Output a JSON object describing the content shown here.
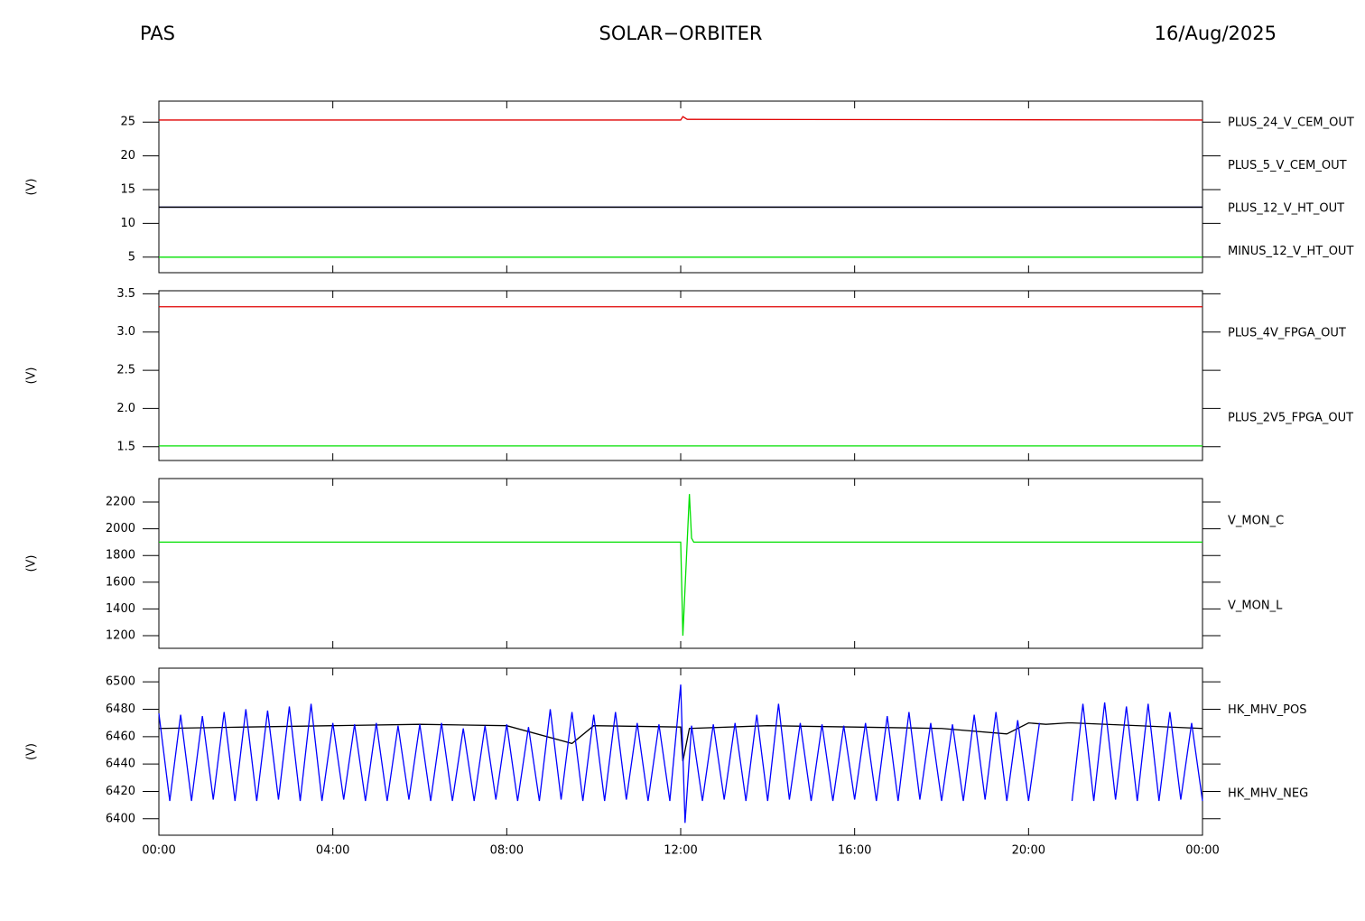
{
  "header": {
    "left": "PAS",
    "center": "SOLAR−ORBITER",
    "right": "16/Aug/2025"
  },
  "chart_data": [
    {
      "type": "line",
      "ylabel": "(V)",
      "ylim": [
        2.7,
        28.1
      ],
      "yticks": [
        5,
        10,
        15,
        20,
        25
      ],
      "series": [
        {
          "name": "PLUS_24_V_CEM_OUT",
          "color": "#e00000",
          "x": [
            0,
            12,
            12.05,
            12.15,
            24
          ],
          "values": [
            25.3,
            25.3,
            25.8,
            25.4,
            25.3
          ]
        },
        {
          "name": "PLUS_5_V_CEM_OUT",
          "color": "#00e000",
          "x": [
            0,
            24
          ],
          "values": [
            5.0,
            5.0
          ]
        },
        {
          "name": "PLUS_12_V_HT_OUT",
          "color": "#0000c0",
          "x": [
            0,
            24
          ],
          "values": [
            12.4,
            12.4
          ]
        },
        {
          "name": "MINUS_12_V_HT_OUT",
          "color": "#000000",
          "x": [
            0,
            24
          ],
          "values": [
            12.4,
            12.4
          ]
        }
      ]
    },
    {
      "type": "line",
      "ylabel": "(V)",
      "ylim": [
        1.32,
        3.54
      ],
      "yticks": [
        1.5,
        {
          "value": 2,
          "label": "2.0"
        },
        2.5,
        {
          "value": 3,
          "label": "3.0"
        },
        3.5
      ],
      "series": [
        {
          "name": "PLUS_4V_FPGA_OUT",
          "color": "#e00000",
          "x": [
            0,
            24
          ],
          "values": [
            3.33,
            3.33
          ]
        },
        {
          "name": "PLUS_2V5_FPGA_OUT",
          "color": "#00e000",
          "x": [
            0,
            24
          ],
          "values": [
            1.51,
            1.51
          ]
        }
      ]
    },
    {
      "type": "line",
      "ylabel": "(V)",
      "ylim": [
        1105,
        2376
      ],
      "yticks": [
        1200,
        1400,
        1600,
        1800,
        2000,
        2200
      ],
      "series": [
        {
          "name": "V_MON_C",
          "color": "#e00000",
          "x": [
            0,
            24
          ],
          "values": [
            null,
            null
          ]
        },
        {
          "name": "V_MON_L",
          "color": "#00e000",
          "x": [
            0,
            12.0,
            12.05,
            12.2,
            12.25,
            12.3,
            24
          ],
          "values": [
            1900,
            1900,
            1200,
            2260,
            1930,
            1900,
            1900
          ]
        }
      ]
    },
    {
      "type": "line",
      "ylabel": "(V)",
      "ylim": [
        6388,
        6510
      ],
      "yticks": [
        6400,
        6420,
        6440,
        6460,
        6480,
        6500
      ],
      "xlim": [
        0,
        24
      ],
      "xticks": [
        {
          "value": 0,
          "label": "00:00"
        },
        {
          "value": 4,
          "label": "04:00"
        },
        {
          "value": 8,
          "label": "08:00"
        },
        {
          "value": 12,
          "label": "12:00"
        },
        {
          "value": 16,
          "label": "16:00"
        },
        {
          "value": 20,
          "label": "20:00"
        },
        {
          "value": 24,
          "label": "00:00"
        }
      ],
      "series": [
        {
          "name": "HK_MHV_POS",
          "color": "#000000",
          "x": [
            0,
            2,
            4,
            6,
            8,
            9.5,
            10,
            12,
            12.05,
            12.2,
            14,
            16,
            18,
            19.5,
            20,
            20.4,
            20.9,
            21,
            24
          ],
          "values": [
            6466,
            6467,
            6468,
            6469,
            6468,
            6455,
            6468,
            6467,
            6442,
            6466,
            6468,
            6467,
            6466,
            6462,
            6470,
            6469,
            6470,
            6470,
            6466
          ]
        },
        {
          "name": "HK_MHV_NEG",
          "color": "#0000ff",
          "x": [
            0,
            0.25,
            0.5,
            0.75,
            1,
            1.25,
            1.5,
            1.75,
            2,
            2.25,
            2.5,
            2.75,
            3,
            3.25,
            3.5,
            3.75,
            4,
            4.25,
            4.5,
            4.75,
            5,
            5.25,
            5.5,
            5.75,
            6,
            6.25,
            6.5,
            6.75,
            7,
            7.25,
            7.5,
            7.75,
            8,
            8.25,
            8.5,
            8.75,
            9,
            9.25,
            9.5,
            9.75,
            10,
            10.25,
            10.5,
            10.75,
            11,
            11.25,
            11.5,
            11.75,
            12,
            12.1,
            12.25,
            12.5,
            12.75,
            13,
            13.25,
            13.5,
            13.75,
            14,
            14.25,
            14.5,
            14.75,
            15,
            15.25,
            15.5,
            15.75,
            16,
            16.25,
            16.5,
            16.75,
            17,
            17.25,
            17.5,
            17.75,
            18,
            18.25,
            18.5,
            18.75,
            19,
            19.25,
            19.5,
            19.75,
            20,
            20.25,
            20.5,
            20.75,
            21,
            21.25,
            21.5,
            21.75,
            22,
            22.25,
            22.5,
            22.75,
            23,
            23.25,
            23.5,
            23.75,
            24
          ],
          "values": [
            6477,
            6413,
            6476,
            6413,
            6475,
            6414,
            6478,
            6413,
            6480,
            6413,
            6479,
            6414,
            6482,
            6413,
            6484,
            6413,
            6470,
            6414,
            6469,
            6413,
            6470,
            6413,
            6468,
            6414,
            6469,
            6413,
            6470,
            6413,
            6466,
            6413,
            6468,
            6414,
            6469,
            6413,
            6467,
            6413,
            6480,
            6414,
            6478,
            6413,
            6476,
            6413,
            6478,
            6414,
            6470,
            6413,
            6469,
            6413,
            6498,
            6397,
            6468,
            6413,
            6469,
            6414,
            6470,
            6413,
            6476,
            6413,
            6484,
            6414,
            6470,
            6413,
            6469,
            6413,
            6468,
            6414,
            6470,
            6413,
            6475,
            6413,
            6478,
            6414,
            6470,
            6413,
            6469,
            6413,
            6476,
            6414,
            6478,
            6413,
            6472,
            6413,
            6470,
            null,
            null,
            6413,
            6484,
            6413,
            6485,
            6414,
            6482,
            6413,
            6484,
            6413,
            6478,
            6414,
            6470,
            6413
          ]
        }
      ]
    }
  ]
}
